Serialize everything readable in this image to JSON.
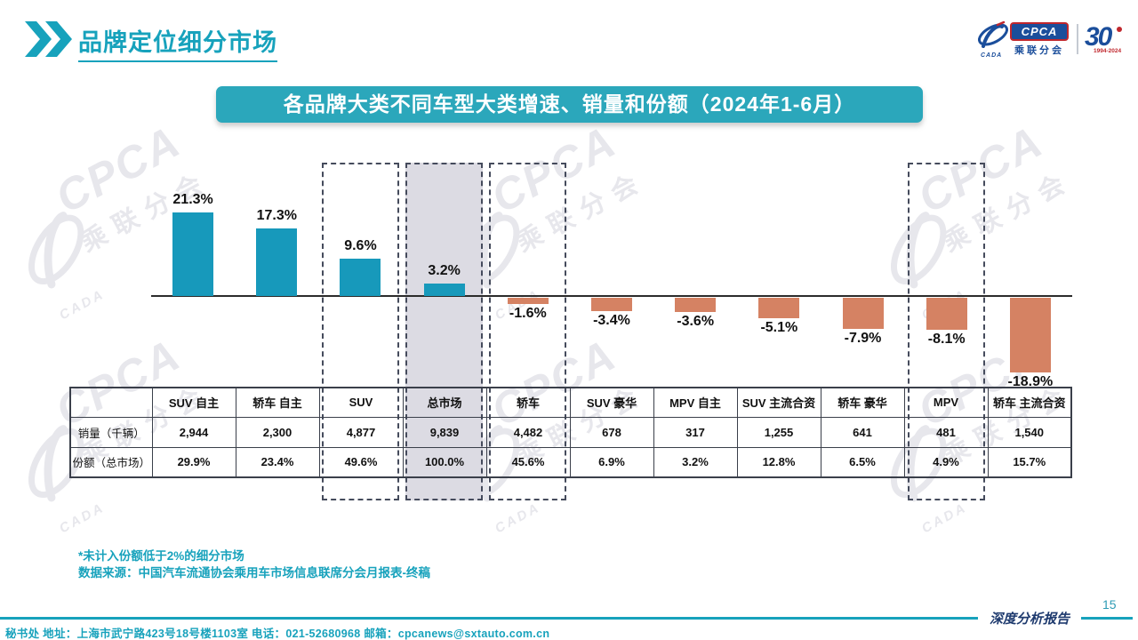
{
  "header": {
    "title": "品牌定位细分市场"
  },
  "logo": {
    "cpca": "CPCA",
    "sub": "乘联分会",
    "cada": "CADA",
    "anniversary_number": "30",
    "anniversary_years": "1994-2024"
  },
  "banner": {
    "title": "各品牌大类不同车型大类增速、销量和份额（2024年1-6月）"
  },
  "chart_data": {
    "type": "bar",
    "title": "各品牌大类不同车型大类增速、销量和份额（2024年1-6月）",
    "categories": [
      "SUV 自主",
      "轿车 自主",
      "SUV",
      "总市场",
      "轿车",
      "SUV 豪华",
      "MPV 自主",
      "SUV 主流合资",
      "轿车 豪华",
      "MPV",
      "轿车 主流合资"
    ],
    "series": [
      {
        "name": "增速",
        "values": [
          21.3,
          17.3,
          9.6,
          3.2,
          -1.6,
          -3.4,
          -3.6,
          -5.1,
          -7.9,
          -8.1,
          -18.9
        ]
      },
      {
        "name": "销量（千辆）",
        "values": [
          2944,
          2300,
          4877,
          9839,
          4482,
          678,
          317,
          1255,
          641,
          481,
          1540
        ]
      },
      {
        "name": "份额（总市场）",
        "values": [
          29.9,
          23.4,
          49.6,
          100.0,
          45.6,
          6.9,
          3.2,
          12.8,
          6.5,
          4.9,
          15.7
        ]
      }
    ],
    "growth_labels": [
      "21.3%",
      "17.3%",
      "9.6%",
      "3.2%",
      "-1.6%",
      "-3.4%",
      "-3.6%",
      "-5.1%",
      "-7.9%",
      "-8.1%",
      "-18.9%"
    ],
    "sales_labels": [
      "2,944",
      "2,300",
      "4,877",
      "9,839",
      "4,482",
      "678",
      "317",
      "1,255",
      "641",
      "481",
      "1,540"
    ],
    "share_labels": [
      "29.9%",
      "23.4%",
      "49.6%",
      "100.0%",
      "45.6%",
      "6.9%",
      "3.2%",
      "12.8%",
      "6.5%",
      "4.9%",
      "15.7%"
    ],
    "highlighted_columns": [
      2,
      3,
      4,
      9
    ],
    "gray_filled_column": 3,
    "ylim": [
      -20,
      25
    ],
    "grid": false,
    "legend": "none",
    "colors": {
      "positive_bar": "#1799bb",
      "negative_bar": "#d58263",
      "gray_box": "#dcdbe3",
      "dashed_box": "#454b5c",
      "accent": "#17a2bc"
    }
  },
  "table": {
    "row_labels": {
      "sales": "销量（千辆）",
      "share": "份额（总市场）"
    }
  },
  "footnotes": {
    "line1": "*未计入份额低于2%的细分市场",
    "line2": "数据来源：中国汽车流通协会乘用车市场信息联席分会月报表-终稿"
  },
  "footer": {
    "address": "秘书处   地址：上海市武宁路423号18号楼1103室   电话：021-52680968    邮箱：cpcanews@sxtauto.com.cn",
    "page": "15",
    "report_name": "深度分析报告"
  },
  "watermark": {
    "line1": "CPCA",
    "line2": "乘联分会",
    "line3": "CADA"
  }
}
